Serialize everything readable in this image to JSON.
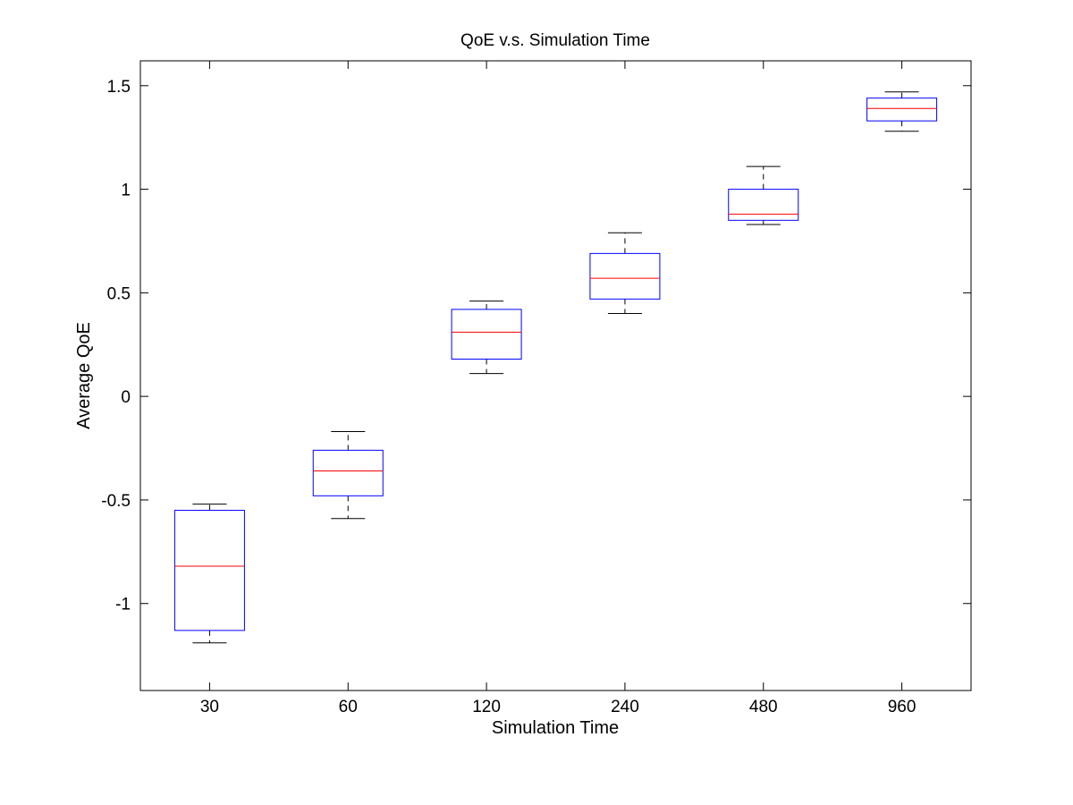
{
  "chart_data": {
    "type": "box",
    "title": "QoE v.s. Simulation Time",
    "xlabel": "Simulation Time",
    "ylabel": "Average QoE",
    "categories": [
      "30",
      "60",
      "120",
      "240",
      "480",
      "960"
    ],
    "boxes": [
      {
        "category": "30",
        "whisker_low": -1.19,
        "q1": -1.13,
        "median": -0.82,
        "q3": -0.55,
        "whisker_high": -0.52
      },
      {
        "category": "60",
        "whisker_low": -0.59,
        "q1": -0.48,
        "median": -0.36,
        "q3": -0.26,
        "whisker_high": -0.17
      },
      {
        "category": "120",
        "whisker_low": 0.11,
        "q1": 0.18,
        "median": 0.31,
        "q3": 0.42,
        "whisker_high": 0.46
      },
      {
        "category": "240",
        "whisker_low": 0.4,
        "q1": 0.47,
        "median": 0.57,
        "q3": 0.69,
        "whisker_high": 0.79
      },
      {
        "category": "480",
        "whisker_low": 0.83,
        "q1": 0.85,
        "median": 0.88,
        "q3": 1.0,
        "whisker_high": 1.11
      },
      {
        "category": "960",
        "whisker_low": 1.28,
        "q1": 1.33,
        "median": 1.39,
        "q3": 1.44,
        "whisker_high": 1.47
      }
    ],
    "ylim": [
      -1.42,
      1.62
    ],
    "yticks": [
      -1,
      -0.5,
      0,
      0.5,
      1,
      1.5
    ],
    "ytick_labels": [
      "-1",
      "-0.5",
      "0",
      "0.5",
      "1",
      "1.5"
    ],
    "grid": false,
    "colors": {
      "box": "#0000ff",
      "median": "#ff0000",
      "whisker": "#000000",
      "axes": "#000000"
    }
  }
}
